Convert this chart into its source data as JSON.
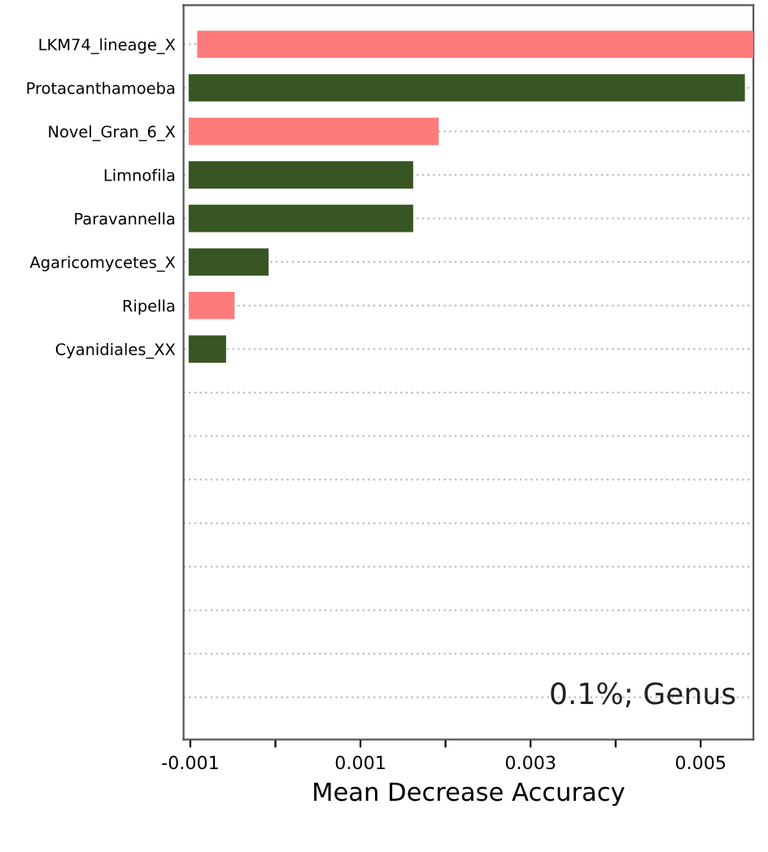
{
  "chart_data": {
    "type": "bar",
    "orientation": "horizontal",
    "xlabel": "Mean Decrease Accuracy",
    "categories": [
      "LKM74_lineage_X",
      "Protacanthamoeba",
      "Novel_Gran_6_X",
      "Limnofila",
      "Paravannella",
      "Agaricomycetes_X",
      "Ripella",
      "Cyanidiales_XX",
      null,
      null,
      null,
      null,
      null,
      null,
      null,
      null
    ],
    "values": [
      0.0065,
      0.0065,
      0.0029,
      0.0026,
      0.0026,
      0.0009,
      0.0005,
      0.0004,
      null,
      null,
      null,
      null,
      null,
      null,
      null,
      null
    ],
    "base": [
      -0.0009,
      -0.001,
      -0.001,
      -0.001,
      -0.001,
      -0.001,
      -0.001,
      -0.001,
      null,
      null,
      null,
      null,
      null,
      null,
      null,
      null
    ],
    "colors": [
      "#ff7b7b",
      "#375623",
      "#ff7b7b",
      "#375623",
      "#375623",
      "#375623",
      "#ff7b7b",
      "#375623",
      null,
      null,
      null,
      null,
      null,
      null,
      null,
      null
    ],
    "xlim": [
      -0.00108,
      0.00562
    ],
    "xticks": [
      -0.001,
      {
        "value": 0,
        "label": null
      },
      0.001,
      {
        "value": 0.002,
        "label": null
      },
      0.003,
      {
        "value": 0.004,
        "label": null
      },
      0.005
    ],
    "grid": "y",
    "annotations": [
      "0.1%; Genus"
    ]
  }
}
